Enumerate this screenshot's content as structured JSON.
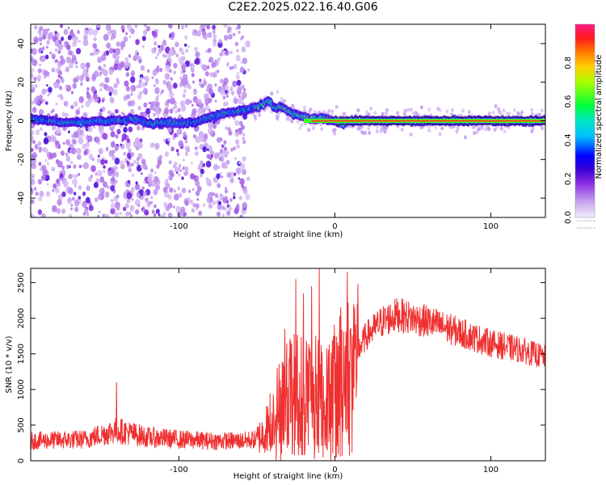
{
  "title": "C2E2.2025.022.16.40.G06",
  "chart_data": [
    {
      "type": "heatmap",
      "xlabel": "Height of straight line (km)",
      "ylabel": "Frequency (Hz)",
      "xlim": [
        -195,
        135
      ],
      "ylim": [
        -50,
        50
      ],
      "xticks": [
        -100,
        0,
        100
      ],
      "yticks": [
        -40,
        -20,
        0,
        20,
        40
      ],
      "colorbar": {
        "label": "Normalized spectral amplitude",
        "range": [
          0,
          1
        ],
        "ticks": [
          "0.0",
          "0.2",
          "0.4",
          "0.6",
          "0.8"
        ]
      },
      "ridge": {
        "x": [
          -195,
          -170,
          -150,
          -140,
          -130,
          -120,
          -110,
          -100,
          -90,
          -80,
          -70,
          -60,
          -55,
          -50,
          -45,
          -42,
          -38,
          -35,
          -30,
          -25,
          -20,
          -15,
          -10,
          -5,
          0,
          5,
          10,
          20,
          40,
          80,
          135
        ],
        "freq": [
          1,
          -1,
          0,
          0,
          1,
          -1,
          -1,
          -1,
          -1,
          2,
          4,
          5,
          6,
          7,
          9,
          10,
          6,
          8,
          5,
          3,
          2,
          1,
          1,
          1,
          0,
          -1,
          0,
          0,
          0,
          0,
          0
        ]
      },
      "scatter_cutoff_x": -55
    },
    {
      "type": "line",
      "xlabel": "Height of straight line (km)",
      "ylabel": "SNR (10 * v/v)",
      "xlim": [
        -195,
        135
      ],
      "ylim": [
        0,
        2700
      ],
      "xticks": [
        -100,
        0,
        100
      ],
      "yticks": [
        0,
        500,
        1000,
        1500,
        2000,
        2500
      ],
      "color": "#ef3030",
      "envelope": {
        "x": [
          -195,
          -160,
          -140,
          -120,
          -100,
          -80,
          -60,
          -50,
          -45,
          -40,
          -35,
          -30,
          -25,
          -20,
          -15,
          -10,
          -5,
          0,
          5,
          10,
          15,
          20,
          30,
          40,
          60,
          80,
          100,
          120,
          135
        ],
        "y": [
          280,
          300,
          430,
          330,
          300,
          280,
          280,
          300,
          400,
          650,
          850,
          1000,
          1050,
          1050,
          1050,
          1000,
          1050,
          1100,
          1300,
          1400,
          1550,
          1750,
          1950,
          2050,
          1950,
          1800,
          1650,
          1550,
          1450
        ]
      },
      "peaks": {
        "x": [
          -140,
          -32,
          -25,
          -20,
          -15,
          -10,
          8,
          12
        ],
        "y": [
          1100,
          1850,
          2550,
          2350,
          2450,
          2700,
          2650,
          2200
        ]
      }
    }
  ]
}
